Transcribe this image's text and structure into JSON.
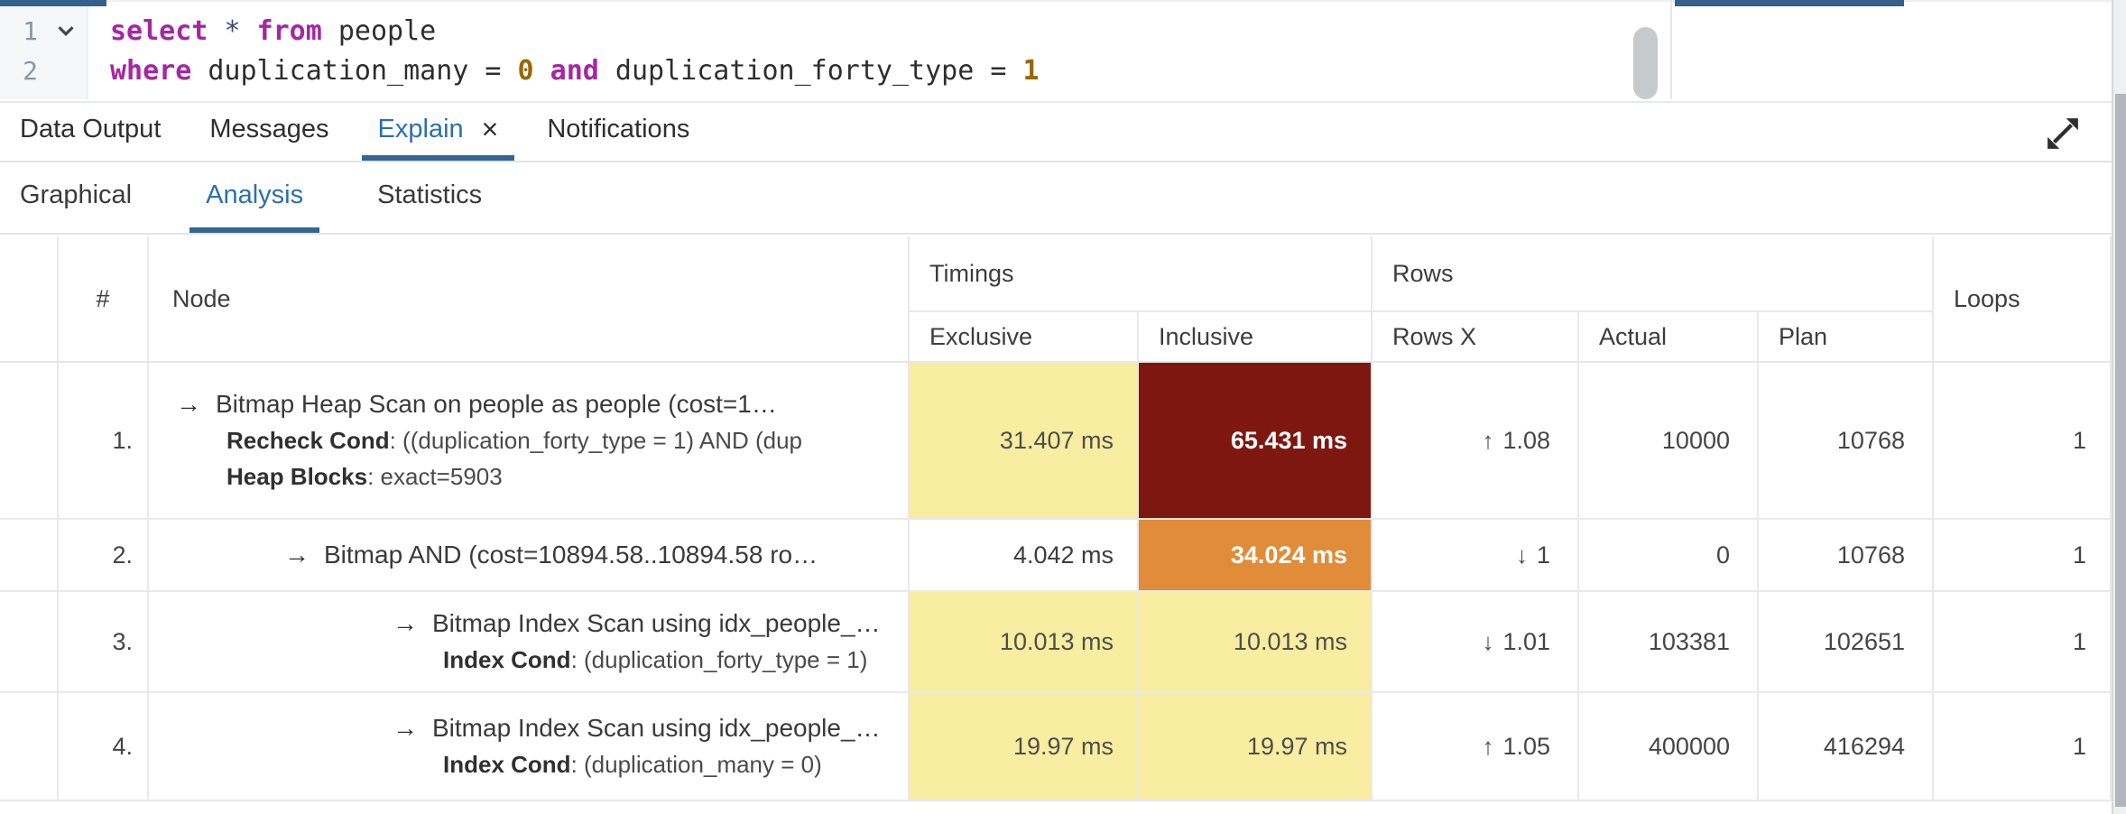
{
  "colors": {
    "accent_blue": "#2c6fad",
    "underline_blue": "#326690",
    "topbar_blue": "#33618c",
    "keyword_purple": "#a626a4",
    "number_brown": "#986801",
    "timing_yellow": "#f8eda0",
    "timing_orange": "#e08c38",
    "timing_red": "#7d170f"
  },
  "editor": {
    "lines": [
      {
        "number": "1",
        "has_fold": true,
        "tokens": [
          {
            "type": "kw",
            "text": "select"
          },
          {
            "type": "plain",
            "text": " "
          },
          {
            "type": "op",
            "text": "*"
          },
          {
            "type": "plain",
            "text": " "
          },
          {
            "type": "kw",
            "text": "from"
          },
          {
            "type": "plain",
            "text": " people"
          }
        ]
      },
      {
        "number": "2",
        "has_fold": false,
        "tokens": [
          {
            "type": "kw",
            "text": "where"
          },
          {
            "type": "plain",
            "text": " duplication_many = "
          },
          {
            "type": "num",
            "text": "0"
          },
          {
            "type": "plain",
            "text": " "
          },
          {
            "type": "kw",
            "text": "and"
          },
          {
            "type": "plain",
            "text": " duplication_forty_type = "
          },
          {
            "type": "num",
            "text": "1"
          }
        ]
      }
    ]
  },
  "result_tabs": {
    "close_icon": "×",
    "items": [
      {
        "label": "Data Output",
        "active": false,
        "closable": false
      },
      {
        "label": "Messages",
        "active": false,
        "closable": false
      },
      {
        "label": "Explain",
        "active": true,
        "closable": true
      },
      {
        "label": "Notifications",
        "active": false,
        "closable": false
      }
    ]
  },
  "explain_tabs": {
    "items": [
      {
        "label": "Graphical",
        "active": false
      },
      {
        "label": "Analysis",
        "active": true
      },
      {
        "label": "Statistics",
        "active": false
      }
    ]
  },
  "table": {
    "node_arrow": "→",
    "dir_icons": {
      "up": "↑",
      "down": "↓"
    },
    "headers": {
      "hash": "#",
      "node": "Node",
      "timings": "Timings",
      "rows": "Rows",
      "loops": "Loops",
      "exclusive": "Exclusive",
      "inclusive": "Inclusive",
      "rows_x": "Rows X",
      "actual": "Actual",
      "plan": "Plan"
    },
    "rows": [
      {
        "num": "1.",
        "indent": 0,
        "title": "Bitmap Heap Scan on people as people (cost=1…",
        "details": [
          {
            "label": "Recheck Cond",
            "text": ": ((duplication_forty_type = 1) AND (dup"
          },
          {
            "label": "Heap Blocks",
            "text": ": exact=5903"
          }
        ],
        "exclusive": {
          "value": "31.407 ms",
          "level": "yellow"
        },
        "inclusive": {
          "value": "65.431 ms",
          "level": "red"
        },
        "rows_x": {
          "dir": "up",
          "value": "1.08"
        },
        "actual": "10000",
        "plan": "10768",
        "loops": "1"
      },
      {
        "num": "2.",
        "indent": 1,
        "title": "Bitmap AND (cost=10894.58..10894.58 ro…",
        "details": [],
        "exclusive": {
          "value": "4.042 ms",
          "level": "none"
        },
        "inclusive": {
          "value": "34.024 ms",
          "level": "orange"
        },
        "rows_x": {
          "dir": "down",
          "value": "1"
        },
        "actual": "0",
        "plan": "10768",
        "loops": "1"
      },
      {
        "num": "3.",
        "indent": 2,
        "title": "Bitmap Index Scan using idx_people_…",
        "details": [
          {
            "label": "Index Cond",
            "text": ": (duplication_forty_type = 1)"
          }
        ],
        "exclusive": {
          "value": "10.013 ms",
          "level": "yellow"
        },
        "inclusive": {
          "value": "10.013 ms",
          "level": "yellow"
        },
        "rows_x": {
          "dir": "down",
          "value": "1.01"
        },
        "actual": "103381",
        "plan": "102651",
        "loops": "1"
      },
      {
        "num": "4.",
        "indent": 2,
        "title": "Bitmap Index Scan using idx_people_…",
        "details": [
          {
            "label": "Index Cond",
            "text": ": (duplication_many = 0)"
          }
        ],
        "exclusive": {
          "value": "19.97 ms",
          "level": "yellow"
        },
        "inclusive": {
          "value": "19.97 ms",
          "level": "yellow"
        },
        "rows_x": {
          "dir": "up",
          "value": "1.05"
        },
        "actual": "400000",
        "plan": "416294",
        "loops": "1"
      }
    ]
  }
}
